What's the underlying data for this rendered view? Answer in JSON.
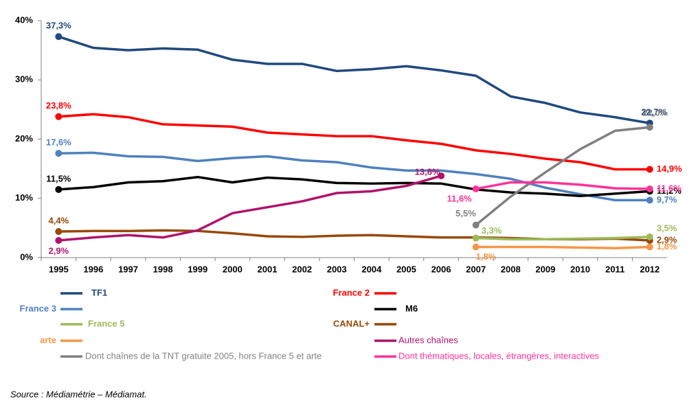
{
  "chart_data": {
    "type": "line",
    "categories": [
      "1995",
      "1996",
      "1997",
      "1998",
      "1999",
      "2000",
      "2001",
      "2002",
      "2003",
      "2004",
      "2005",
      "2006",
      "2007",
      "2008",
      "2009",
      "2010",
      "2011",
      "2012"
    ],
    "ylim": [
      0,
      40
    ],
    "yticks": [
      {
        "value": 0,
        "label": "0%"
      },
      {
        "value": 10,
        "label": "10%"
      },
      {
        "value": 20,
        "label": "20%"
      },
      {
        "value": 30,
        "label": "30%"
      },
      {
        "value": 40,
        "label": "40%"
      }
    ],
    "grid": false,
    "series": [
      {
        "name": "TF1",
        "color": "#1f497d",
        "values": [
          37.3,
          35.4,
          35.0,
          35.3,
          35.1,
          33.4,
          32.7,
          32.7,
          31.5,
          31.8,
          32.3,
          31.6,
          30.7,
          27.2,
          26.1,
          24.5,
          23.7,
          22.7
        ],
        "value_labels": [
          "37,3%",
          null,
          null,
          null,
          null,
          null,
          null,
          null,
          null,
          null,
          null,
          null,
          null,
          null,
          null,
          null,
          null,
          "22,7%"
        ]
      },
      {
        "name": "France 2",
        "color": "#ff0000",
        "values": [
          23.8,
          24.2,
          23.7,
          22.5,
          22.3,
          22.1,
          21.1,
          20.8,
          20.5,
          20.5,
          19.8,
          19.2,
          18.1,
          17.5,
          16.7,
          16.1,
          14.9,
          14.9
        ],
        "value_labels": [
          "23,8%",
          null,
          null,
          null,
          null,
          null,
          null,
          null,
          null,
          null,
          null,
          null,
          null,
          null,
          null,
          null,
          null,
          "14,9%"
        ]
      },
      {
        "name": "France 3",
        "color": "#4f81bd",
        "values": [
          17.6,
          17.7,
          17.1,
          17.0,
          16.3,
          16.8,
          17.1,
          16.4,
          16.1,
          15.2,
          14.7,
          14.7,
          14.1,
          13.3,
          11.8,
          10.7,
          9.7,
          9.7
        ],
        "value_labels": [
          "17,6%",
          null,
          null,
          null,
          null,
          null,
          null,
          null,
          null,
          null,
          null,
          null,
          null,
          null,
          null,
          null,
          null,
          "9,7%"
        ]
      },
      {
        "name": "M6",
        "color": "#000000",
        "values": [
          11.5,
          11.9,
          12.7,
          12.9,
          13.6,
          12.7,
          13.5,
          13.2,
          12.6,
          12.5,
          12.6,
          12.5,
          11.5,
          11.0,
          10.8,
          10.4,
          10.8,
          11.2
        ],
        "value_labels": [
          "11,5%",
          null,
          null,
          null,
          null,
          null,
          null,
          null,
          null,
          null,
          null,
          null,
          null,
          null,
          null,
          null,
          null,
          "11,2%"
        ]
      },
      {
        "name": "CANAL+",
        "color": "#984807",
        "values": [
          4.4,
          4.5,
          4.5,
          4.6,
          4.5,
          4.1,
          3.6,
          3.5,
          3.7,
          3.8,
          3.6,
          3.4,
          3.4,
          3.3,
          3.1,
          3.1,
          3.2,
          2.9
        ],
        "value_labels": [
          "4,4%",
          null,
          null,
          null,
          null,
          null,
          null,
          null,
          null,
          null,
          null,
          null,
          null,
          null,
          null,
          null,
          null,
          "2,9%"
        ]
      },
      {
        "name": "Autres chaînes",
        "color": "#b0136b",
        "values": [
          2.9,
          3.4,
          3.8,
          3.4,
          4.6,
          7.5,
          8.5,
          9.5,
          10.9,
          11.2,
          12.1,
          13.8,
          null,
          null,
          null,
          null,
          null,
          null
        ],
        "value_labels": [
          "2,9%",
          null,
          null,
          null,
          null,
          null,
          null,
          null,
          null,
          null,
          null,
          "13,8%",
          null,
          null,
          null,
          null,
          null,
          null
        ]
      },
      {
        "name": "Dont chaînes de la TNT gratuite 2005, hors France 5 et arte",
        "color": "#808080",
        "values": [
          null,
          null,
          null,
          null,
          null,
          null,
          null,
          null,
          null,
          null,
          null,
          null,
          5.5,
          10.3,
          14.4,
          18.3,
          21.4,
          22.0
        ],
        "value_labels": [
          null,
          null,
          null,
          null,
          null,
          null,
          null,
          null,
          null,
          null,
          null,
          null,
          "5,5%",
          null,
          null,
          null,
          null,
          "22,0%"
        ]
      },
      {
        "name": "Dont thématiques, locales, étrangères, interactives",
        "color": "#ff3399",
        "values": [
          null,
          null,
          null,
          null,
          null,
          null,
          null,
          null,
          null,
          null,
          null,
          null,
          11.6,
          12.7,
          12.7,
          12.3,
          11.7,
          11.6
        ],
        "value_labels": [
          null,
          null,
          null,
          null,
          null,
          null,
          null,
          null,
          null,
          null,
          null,
          null,
          "11,6%",
          null,
          null,
          null,
          null,
          "11,6%"
        ]
      },
      {
        "name": "France 5",
        "color": "#9bbb59",
        "values": [
          null,
          null,
          null,
          null,
          null,
          null,
          null,
          null,
          null,
          null,
          null,
          null,
          3.3,
          3.1,
          3.1,
          3.2,
          3.3,
          3.5
        ],
        "value_labels": [
          null,
          null,
          null,
          null,
          null,
          null,
          null,
          null,
          null,
          null,
          null,
          null,
          "3,3%",
          null,
          null,
          null,
          null,
          "3,5%"
        ]
      },
      {
        "name": "arte",
        "color": "#f79646",
        "values": [
          null,
          null,
          null,
          null,
          null,
          null,
          null,
          null,
          null,
          null,
          null,
          null,
          1.8,
          1.8,
          1.8,
          1.7,
          1.6,
          1.8
        ],
        "value_labels": [
          null,
          null,
          null,
          null,
          null,
          null,
          null,
          null,
          null,
          null,
          null,
          null,
          "1,8%",
          null,
          null,
          null,
          null,
          "1,8%"
        ]
      }
    ],
    "note": "Source : Médiamétrie – Médiamat."
  }
}
